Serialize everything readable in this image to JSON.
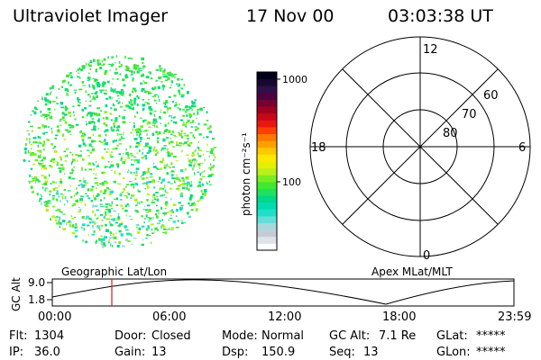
{
  "header": {
    "title": "Ultraviolet Imager",
    "date": "17 Nov 00",
    "time": "03:03:38 UT"
  },
  "colorbar": {
    "unit": "photon cm⁻²s⁻¹",
    "ticks": [
      "1000",
      "100"
    ]
  },
  "polar": {
    "mlt_labels": {
      "top": "12",
      "bottom": "0",
      "left": "18",
      "right": "6"
    },
    "lat_labels": [
      "60",
      "70",
      "80"
    ]
  },
  "captions": {
    "left": "Geographic Lat/Lon",
    "right": "Apex MLat/MLT"
  },
  "altplot": {
    "ylabel": "GC Alt",
    "yticks": [
      "9.0",
      "1.8"
    ],
    "xticks": [
      "00:00",
      "06:00",
      "12:00",
      "18:00",
      "23:59"
    ],
    "marker_time": "03:03:38"
  },
  "info": {
    "flt_label": "Flt:",
    "flt": "1304",
    "door_label": "Door:",
    "door": "Closed",
    "mode_label": "Mode:",
    "mode": "Normal",
    "gcalt_label": "GC Alt:",
    "gcalt": "7.1 Re",
    "glat_label": "GLat:",
    "glat": "*****",
    "ip_label": "IP:",
    "ip": "36.0",
    "gain_label": "Gain:",
    "gain": "13",
    "dsp_label": "Dsp:",
    "dsp": "150.9",
    "seq_label": "Seq:",
    "seq": "13",
    "glon_label": "GLon:",
    "glon": "*****"
  },
  "colors": {
    "colorbar": [
      "#ffffff",
      "#e0e4ea",
      "#c6ccd6",
      "#a8d8dc",
      "#60e0d6",
      "#1ee0c8",
      "#00dcb0",
      "#00d88a",
      "#20e060",
      "#40e830",
      "#78ee20",
      "#b8f018",
      "#e4f000",
      "#ffe800",
      "#ffc800",
      "#ffa000",
      "#ff7800",
      "#ff4000",
      "#e81810",
      "#c80818",
      "#a00020",
      "#780030",
      "#500040",
      "#301048",
      "#180830",
      "#000018"
    ],
    "marker": "#d02020"
  }
}
